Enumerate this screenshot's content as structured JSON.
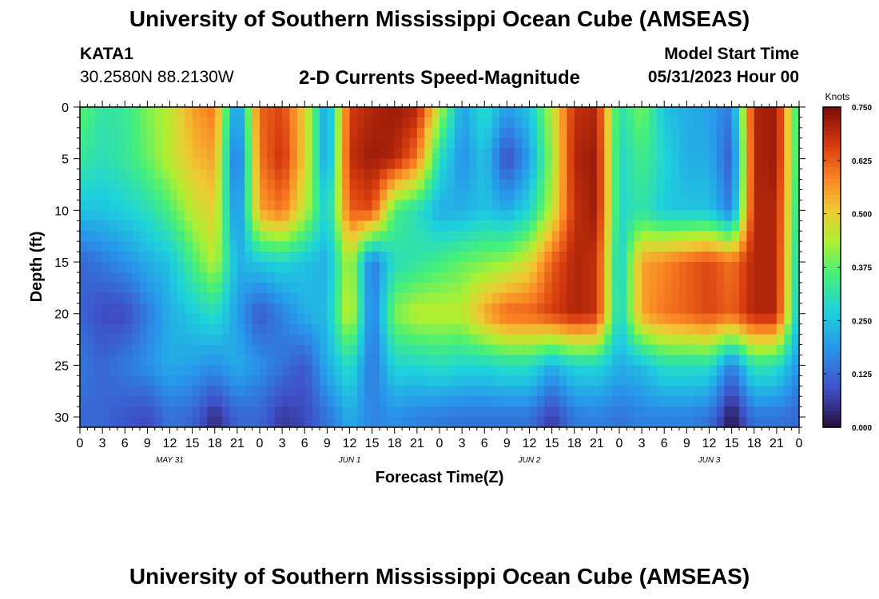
{
  "header": {
    "top_title": "University of Southern Mississippi Ocean Cube (AMSEAS)",
    "station_id": "KATA1",
    "station_coords": "30.2580N  88.2130W",
    "chart_title": "2-D Currents Speed-Magnitude",
    "model_start_label": "Model Start Time",
    "model_start_value": "05/31/2023 Hour 00",
    "bottom_title": "University of Southern Mississippi Ocean Cube (AMSEAS)"
  },
  "chart_data": {
    "type": "heatmap",
    "title": "2-D Currents Speed-Magnitude",
    "xlabel": "Forecast Time(Z)",
    "ylabel": "Depth (ft)",
    "x_range_hours": [
      0,
      96
    ],
    "y_range_ft": [
      0,
      31
    ],
    "y_ticks": [
      "0",
      "5",
      "10",
      "15",
      "20",
      "25",
      "30"
    ],
    "x_tick_labels": [
      "0",
      "3",
      "6",
      "9",
      "12",
      "15",
      "18",
      "21",
      "0",
      "3",
      "6",
      "9",
      "12",
      "15",
      "18",
      "21",
      "0",
      "3",
      "6",
      "9",
      "12",
      "15",
      "18",
      "21",
      "0",
      "3",
      "6",
      "9",
      "12",
      "15",
      "18",
      "21",
      "0"
    ],
    "date_labels": [
      {
        "label": "MAY 31",
        "hour": 12
      },
      {
        "label": "JUN 1",
        "hour": 36
      },
      {
        "label": "JUN 2",
        "hour": 60
      },
      {
        "label": "JUN 3",
        "hour": 84
      }
    ],
    "colorbar": {
      "unit": "Knots",
      "min": 0.0,
      "max": 0.75,
      "ticks": [
        "0.750",
        "0.625",
        "0.500",
        "0.375",
        "0.250",
        "0.125",
        "0.000"
      ]
    },
    "time_steps_hours": [
      0,
      3,
      6,
      9,
      12,
      15,
      18,
      21,
      24,
      27,
      30,
      33,
      36,
      39,
      42,
      45,
      48,
      51,
      54,
      57,
      60,
      63,
      66,
      69,
      72,
      75,
      78,
      81,
      84,
      87,
      90,
      93,
      96
    ],
    "depth_levels_ft": [
      0,
      5,
      10,
      15,
      20,
      25,
      30
    ],
    "speed_knots": [
      [
        0.38,
        0.32,
        0.33,
        0.4,
        0.45,
        0.55,
        0.6,
        0.15,
        0.62,
        0.65,
        0.5,
        0.18,
        0.66,
        0.7,
        0.72,
        0.7,
        0.45,
        0.2,
        0.3,
        0.2,
        0.25,
        0.45,
        0.68,
        0.7,
        0.3,
        0.4,
        0.25,
        0.22,
        0.2,
        0.15,
        0.7,
        0.72,
        0.3
      ],
      [
        0.33,
        0.3,
        0.33,
        0.38,
        0.45,
        0.52,
        0.55,
        0.1,
        0.6,
        0.68,
        0.5,
        0.18,
        0.68,
        0.72,
        0.7,
        0.6,
        0.3,
        0.18,
        0.25,
        0.08,
        0.2,
        0.42,
        0.7,
        0.72,
        0.28,
        0.35,
        0.28,
        0.22,
        0.22,
        0.1,
        0.7,
        0.72,
        0.3
      ],
      [
        0.25,
        0.25,
        0.27,
        0.3,
        0.36,
        0.45,
        0.5,
        0.15,
        0.55,
        0.6,
        0.45,
        0.26,
        0.62,
        0.65,
        0.36,
        0.3,
        0.22,
        0.22,
        0.25,
        0.22,
        0.28,
        0.45,
        0.68,
        0.72,
        0.28,
        0.32,
        0.26,
        0.25,
        0.25,
        0.15,
        0.7,
        0.7,
        0.28
      ],
      [
        0.12,
        0.15,
        0.18,
        0.22,
        0.25,
        0.35,
        0.45,
        0.22,
        0.26,
        0.28,
        0.25,
        0.22,
        0.45,
        0.14,
        0.3,
        0.32,
        0.35,
        0.38,
        0.4,
        0.42,
        0.48,
        0.62,
        0.7,
        0.68,
        0.25,
        0.55,
        0.58,
        0.62,
        0.65,
        0.6,
        0.7,
        0.7,
        0.25
      ],
      [
        0.12,
        0.08,
        0.08,
        0.15,
        0.22,
        0.26,
        0.3,
        0.2,
        0.1,
        0.16,
        0.22,
        0.24,
        0.48,
        0.14,
        0.4,
        0.45,
        0.45,
        0.45,
        0.55,
        0.62,
        0.62,
        0.66,
        0.7,
        0.68,
        0.26,
        0.55,
        0.6,
        0.62,
        0.65,
        0.62,
        0.7,
        0.7,
        0.22
      ],
      [
        0.15,
        0.12,
        0.15,
        0.18,
        0.22,
        0.2,
        0.18,
        0.22,
        0.18,
        0.14,
        0.1,
        0.22,
        0.3,
        0.14,
        0.28,
        0.28,
        0.3,
        0.28,
        0.28,
        0.3,
        0.3,
        0.22,
        0.28,
        0.28,
        0.22,
        0.24,
        0.3,
        0.3,
        0.3,
        0.15,
        0.32,
        0.3,
        0.18
      ],
      [
        0.12,
        0.12,
        0.1,
        0.08,
        0.14,
        0.12,
        0.04,
        0.12,
        0.12,
        0.06,
        0.08,
        0.14,
        0.22,
        0.16,
        0.18,
        0.16,
        0.15,
        0.14,
        0.14,
        0.14,
        0.14,
        0.06,
        0.15,
        0.16,
        0.14,
        0.16,
        0.16,
        0.16,
        0.14,
        0.01,
        0.14,
        0.14,
        0.12
      ]
    ]
  }
}
